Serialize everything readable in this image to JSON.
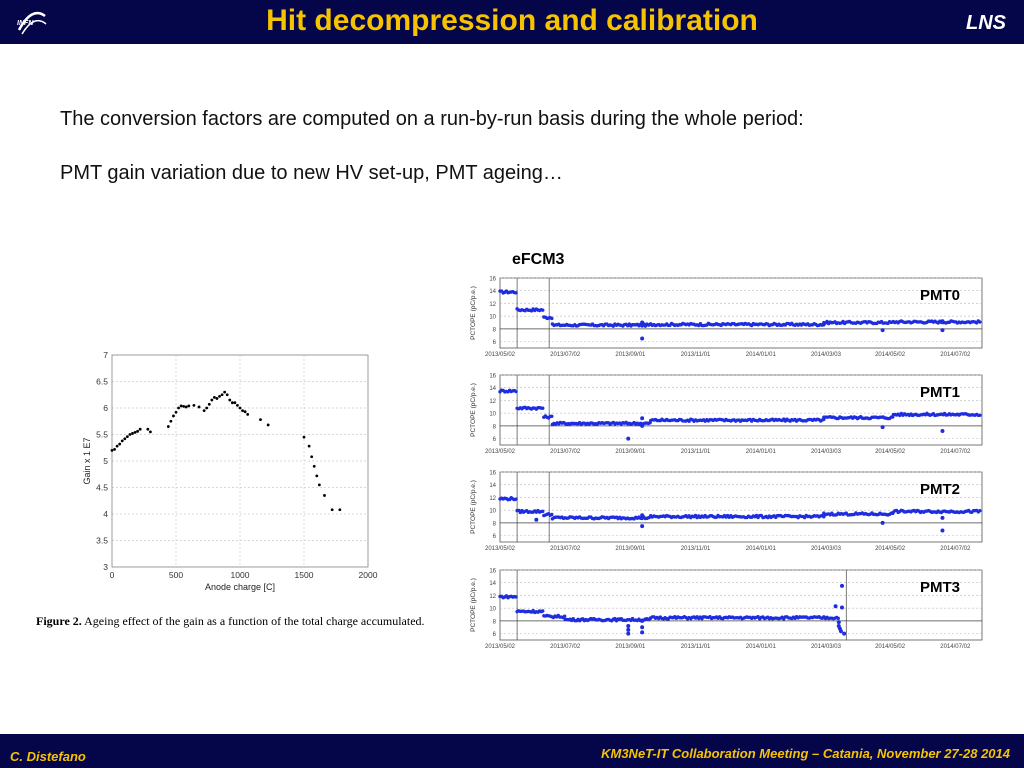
{
  "header": {
    "title": "Hit decompression and calibration",
    "org": "LNS",
    "logo_text": "INFN"
  },
  "body": {
    "line1": "The conversion factors are computed on a run-by-run basis during the whole period:",
    "line2": "PMT gain variation due to new HV set-up, PMT ageing…"
  },
  "figure": {
    "caption_label": "Figure 2.",
    "caption_text": "Ageing effect of the gain as a function of the total charge accumulated."
  },
  "efcm_label": "eFCM3",
  "footer": {
    "author": "C. Distefano",
    "meeting": "KM3NeT-IT Collaboration Meeting – Catania, November 27-28 2014"
  },
  "colors": {
    "bar": "#05064a",
    "title": "#f6c300",
    "points": "#1f2de0"
  },
  "chart_data": [
    {
      "type": "scatter",
      "title": "",
      "xlabel": "Anode charge [C]",
      "ylabel": "Gain x 1 E7",
      "xlim": [
        0,
        2000
      ],
      "ylim": [
        3,
        7
      ],
      "xticks": [
        0,
        500,
        1000,
        1500,
        2000
      ],
      "yticks": [
        3,
        3.5,
        4,
        4.5,
        5,
        5.5,
        6,
        6.5,
        7
      ],
      "grid": true,
      "points": [
        [
          0,
          5.2
        ],
        [
          20,
          5.22
        ],
        [
          40,
          5.28
        ],
        [
          60,
          5.32
        ],
        [
          80,
          5.38
        ],
        [
          100,
          5.42
        ],
        [
          120,
          5.46
        ],
        [
          140,
          5.5
        ],
        [
          160,
          5.52
        ],
        [
          180,
          5.54
        ],
        [
          200,
          5.56
        ],
        [
          220,
          5.6
        ],
        [
          280,
          5.6
        ],
        [
          300,
          5.55
        ],
        [
          440,
          5.65
        ],
        [
          460,
          5.75
        ],
        [
          480,
          5.85
        ],
        [
          500,
          5.92
        ],
        [
          520,
          6.0
        ],
        [
          540,
          6.04
        ],
        [
          560,
          6.03
        ],
        [
          580,
          6.02
        ],
        [
          600,
          6.04
        ],
        [
          640,
          6.05
        ],
        [
          680,
          6.02
        ],
        [
          720,
          5.95
        ],
        [
          740,
          6.0
        ],
        [
          760,
          6.07
        ],
        [
          780,
          6.15
        ],
        [
          800,
          6.2
        ],
        [
          820,
          6.18
        ],
        [
          840,
          6.22
        ],
        [
          860,
          6.25
        ],
        [
          880,
          6.3
        ],
        [
          900,
          6.25
        ],
        [
          920,
          6.15
        ],
        [
          940,
          6.1
        ],
        [
          960,
          6.1
        ],
        [
          980,
          6.05
        ],
        [
          1000,
          6.0
        ],
        [
          1020,
          5.95
        ],
        [
          1040,
          5.93
        ],
        [
          1060,
          5.88
        ],
        [
          1160,
          5.78
        ],
        [
          1220,
          5.68
        ],
        [
          1500,
          5.45
        ],
        [
          1540,
          5.28
        ],
        [
          1560,
          5.08
        ],
        [
          1580,
          4.9
        ],
        [
          1600,
          4.72
        ],
        [
          1620,
          4.55
        ],
        [
          1660,
          4.35
        ],
        [
          1720,
          4.08
        ],
        [
          1780,
          4.08
        ]
      ]
    },
    {
      "type": "scatter",
      "name": "PMT0",
      "label": "PMT0",
      "ylabel": "PCTOPE (pC/p.e.)",
      "ylim": [
        5,
        16
      ],
      "yticks": [
        6,
        8,
        10,
        12,
        14,
        16
      ],
      "xlim": [
        "2013/05/02",
        "2014/07/02"
      ],
      "xticks": [
        "2013/05/02",
        "2013/07/02",
        "2013/09/01",
        "2013/11/01",
        "2014/01/01",
        "2014/03/03",
        "2014/05/02",
        "2014/07/02"
      ],
      "vlines": [
        "2013/05/18",
        "2013/06/17"
      ],
      "hline": 8,
      "segments": [
        {
          "from": "2013/05/02",
          "to": "2013/05/18",
          "value": 13.8
        },
        {
          "from": "2013/05/18",
          "to": "2013/06/12",
          "value": 11.0
        },
        {
          "from": "2013/06/12",
          "to": "2013/06/20",
          "value": 9.8
        },
        {
          "from": "2013/06/20",
          "to": "2013/09/20",
          "value": 8.6
        },
        {
          "from": "2013/09/20",
          "to": "2014/03/01",
          "value": 8.7
        },
        {
          "from": "2014/03/01",
          "to": "2014/05/05",
          "value": 9.0
        },
        {
          "from": "2014/05/05",
          "to": "2014/07/25",
          "value": 9.1
        }
      ],
      "outliers": [
        [
          "2013/09/12",
          6.5
        ],
        [
          "2013/09/12",
          9.0
        ],
        [
          "2014/04/25",
          7.8
        ],
        [
          "2014/06/20",
          7.8
        ],
        [
          "2014/06/20",
          9.2
        ]
      ]
    },
    {
      "type": "scatter",
      "name": "PMT1",
      "label": "PMT1",
      "ylabel": "PCTOPE (pC/p.e.)",
      "ylim": [
        5,
        16
      ],
      "yticks": [
        6,
        8,
        10,
        12,
        14,
        16
      ],
      "xlim": [
        "2013/05/02",
        "2014/07/02"
      ],
      "xticks": [
        "2013/05/02",
        "2013/07/02",
        "2013/09/01",
        "2013/11/01",
        "2014/01/01",
        "2014/03/03",
        "2014/05/02",
        "2014/07/02"
      ],
      "vlines": [
        "2013/05/18",
        "2013/06/17"
      ],
      "hline": 8,
      "segments": [
        {
          "from": "2013/05/02",
          "to": "2013/05/18",
          "value": 13.5
        },
        {
          "from": "2013/05/18",
          "to": "2013/06/12",
          "value": 10.8
        },
        {
          "from": "2013/06/12",
          "to": "2013/06/20",
          "value": 9.4
        },
        {
          "from": "2013/06/20",
          "to": "2013/09/20",
          "value": 8.4
        },
        {
          "from": "2013/09/20",
          "to": "2014/03/01",
          "value": 8.9
        },
        {
          "from": "2014/03/01",
          "to": "2014/05/05",
          "value": 9.3
        },
        {
          "from": "2014/05/05",
          "to": "2014/07/25",
          "value": 9.8
        }
      ],
      "outliers": [
        [
          "2013/08/30",
          6.0
        ],
        [
          "2013/09/12",
          8.0
        ],
        [
          "2013/09/12",
          9.2
        ],
        [
          "2014/04/25",
          7.8
        ],
        [
          "2014/06/20",
          7.2
        ]
      ]
    },
    {
      "type": "scatter",
      "name": "PMT2",
      "label": "PMT2",
      "ylabel": "PCTOPE (pC/p.e.)",
      "ylim": [
        5,
        16
      ],
      "yticks": [
        6,
        8,
        10,
        12,
        14,
        16
      ],
      "xlim": [
        "2013/05/02",
        "2014/07/02"
      ],
      "xticks": [
        "2013/05/02",
        "2013/07/02",
        "2013/09/01",
        "2013/11/01",
        "2014/01/01",
        "2014/03/03",
        "2014/05/02",
        "2014/07/02"
      ],
      "vlines": [
        "2013/05/18",
        "2013/06/17"
      ],
      "hline": 8,
      "segments": [
        {
          "from": "2013/05/02",
          "to": "2013/05/18",
          "value": 11.8
        },
        {
          "from": "2013/05/18",
          "to": "2013/06/12",
          "value": 9.8
        },
        {
          "from": "2013/06/12",
          "to": "2013/06/20",
          "value": 9.3
        },
        {
          "from": "2013/06/20",
          "to": "2013/09/20",
          "value": 8.8
        },
        {
          "from": "2013/09/20",
          "to": "2014/03/01",
          "value": 9.0
        },
        {
          "from": "2014/03/01",
          "to": "2014/05/05",
          "value": 9.4
        },
        {
          "from": "2014/05/05",
          "to": "2014/07/25",
          "value": 9.8
        }
      ],
      "outliers": [
        [
          "2013/06/05",
          8.5
        ],
        [
          "2013/09/12",
          7.5
        ],
        [
          "2013/09/12",
          9.2
        ],
        [
          "2014/04/25",
          8.0
        ],
        [
          "2014/06/20",
          6.8
        ],
        [
          "2014/06/20",
          8.8
        ]
      ]
    },
    {
      "type": "scatter",
      "name": "PMT3",
      "label": "PMT3",
      "ylabel": "PCTOPE (pC/p.e.)",
      "ylim": [
        5,
        16
      ],
      "yticks": [
        6,
        8,
        10,
        12,
        14,
        16
      ],
      "xlim": [
        "2013/05/02",
        "2014/07/02"
      ],
      "xticks": [
        "2013/05/02",
        "2013/07/02",
        "2013/09/01",
        "2013/11/01",
        "2014/01/01",
        "2014/03/03",
        "2014/05/02",
        "2014/07/02"
      ],
      "vlines": [
        "2013/05/18",
        "2014/03/22"
      ],
      "hline": 8,
      "segments": [
        {
          "from": "2013/05/02",
          "to": "2013/05/18",
          "value": 11.8
        },
        {
          "from": "2013/05/18",
          "to": "2013/06/12",
          "value": 9.5
        },
        {
          "from": "2013/06/12",
          "to": "2013/07/02",
          "value": 8.7
        },
        {
          "from": "2013/07/02",
          "to": "2013/09/20",
          "value": 8.2
        },
        {
          "from": "2013/09/20",
          "to": "2014/03/15",
          "value": 8.5
        }
      ],
      "outliers": [
        [
          "2013/08/30",
          7.2
        ],
        [
          "2013/08/30",
          6.0
        ],
        [
          "2013/08/30",
          6.6
        ],
        [
          "2013/09/12",
          6.2
        ],
        [
          "2013/09/12",
          7.0
        ],
        [
          "2013/09/12",
          8.0
        ],
        [
          "2014/03/12",
          10.3
        ],
        [
          "2014/03/15",
          7.8
        ],
        [
          "2014/03/15",
          7.2
        ],
        [
          "2014/03/16",
          6.8
        ],
        [
          "2014/03/17",
          6.4
        ],
        [
          "2014/03/18",
          10.1
        ],
        [
          "2014/03/18",
          13.5
        ],
        [
          "2014/03/20",
          6.0
        ]
      ]
    }
  ]
}
